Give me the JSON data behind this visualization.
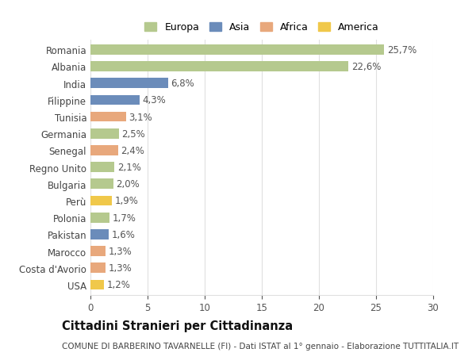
{
  "countries": [
    "Romania",
    "Albania",
    "India",
    "Filippine",
    "Tunisia",
    "Germania",
    "Senegal",
    "Regno Unito",
    "Bulgaria",
    "Perù",
    "Polonia",
    "Pakistan",
    "Marocco",
    "Costa d'Avorio",
    "USA"
  ],
  "values": [
    25.7,
    22.6,
    6.8,
    4.3,
    3.1,
    2.5,
    2.4,
    2.1,
    2.0,
    1.9,
    1.7,
    1.6,
    1.3,
    1.3,
    1.2
  ],
  "labels": [
    "25,7%",
    "22,6%",
    "6,8%",
    "4,3%",
    "3,1%",
    "2,5%",
    "2,4%",
    "2,1%",
    "2,0%",
    "1,9%",
    "1,7%",
    "1,6%",
    "1,3%",
    "1,3%",
    "1,2%"
  ],
  "colors": [
    "#b5c98e",
    "#b5c98e",
    "#6b8cba",
    "#6b8cba",
    "#e8a87c",
    "#b5c98e",
    "#e8a87c",
    "#b5c98e",
    "#b5c98e",
    "#f0c84a",
    "#b5c98e",
    "#6b8cba",
    "#e8a87c",
    "#e8a87c",
    "#f0c84a"
  ],
  "continent_colors": {
    "Europa": "#b5c98e",
    "Asia": "#6b8cba",
    "Africa": "#e8a87c",
    "America": "#f0c84a"
  },
  "xlim": [
    0,
    30
  ],
  "xticks": [
    0,
    5,
    10,
    15,
    20,
    25,
    30
  ],
  "title": "Cittadini Stranieri per Cittadinanza",
  "subtitle": "COMUNE DI BARBERINO TAVARNELLE (FI) - Dati ISTAT al 1° gennaio - Elaborazione TUTTITALIA.IT",
  "bg_color": "#ffffff",
  "grid_color": "#e0e0e0",
  "bar_height": 0.6,
  "label_fontsize": 8.5,
  "tick_fontsize": 8.5,
  "title_fontsize": 10.5,
  "subtitle_fontsize": 7.5
}
